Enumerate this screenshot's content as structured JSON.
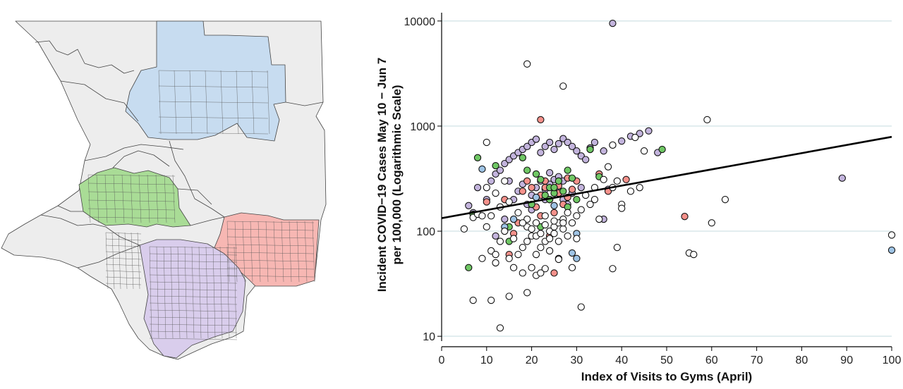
{
  "colors": {
    "north": "#c7dcf0",
    "west": "#a9dc96",
    "east": "#f7b7b3",
    "south": "#d9cdec",
    "other": "#ededed",
    "white": "#ffffff",
    "line": "#000000",
    "grid": "#d8e7ea"
  },
  "chart_data": {
    "type": "scatter",
    "xlabel": "Index of Visits to Gyms (April)",
    "ylabel": "Incident COVID−19 Cases May 10 − Jun 7 per 100,000 (Logarithmic Scale)",
    "ylabel_lines": [
      "Incident COVID−19 Cases May 10 − Jun 7",
      "per 100,000 (Logarithmic Scale)"
    ],
    "xlim": [
      0,
      100
    ],
    "ylim": [
      9,
      12000
    ],
    "yscale": "log",
    "x_ticks": [
      "0",
      "10",
      "20",
      "30",
      "40",
      "50",
      "60",
      "70",
      "80",
      "90",
      "100"
    ],
    "y_ticks": [
      "10",
      "100",
      "1000",
      "10000"
    ],
    "grid": "horizontal",
    "trend_line": {
      "x": [
        0,
        100
      ],
      "y": [
        133,
        790
      ]
    },
    "series": [
      {
        "color": "#c3b4dd",
        "points": [
          [
            38,
            9500
          ],
          [
            7,
            150
          ],
          [
            6,
            175
          ],
          [
            10,
            200
          ],
          [
            8,
            260
          ],
          [
            11,
            300
          ],
          [
            12,
            350
          ],
          [
            13,
            380
          ],
          [
            14,
            440
          ],
          [
            15,
            480
          ],
          [
            16,
            520
          ],
          [
            17,
            560
          ],
          [
            18,
            600
          ],
          [
            19,
            640
          ],
          [
            20,
            700
          ],
          [
            21,
            750
          ],
          [
            22,
            560
          ],
          [
            23,
            640
          ],
          [
            24,
            700
          ],
          [
            25,
            600
          ],
          [
            26,
            680
          ],
          [
            27,
            760
          ],
          [
            28,
            700
          ],
          [
            29,
            640
          ],
          [
            30,
            580
          ],
          [
            31,
            520
          ],
          [
            32,
            480
          ],
          [
            33,
            620
          ],
          [
            34,
            700
          ],
          [
            36,
            580
          ],
          [
            38,
            660
          ],
          [
            40,
            720
          ],
          [
            42,
            800
          ],
          [
            44,
            850
          ],
          [
            46,
            900
          ],
          [
            48,
            560
          ],
          [
            20,
            220
          ],
          [
            21,
            260
          ],
          [
            22,
            300
          ],
          [
            23,
            250
          ],
          [
            24,
            280
          ],
          [
            25,
            310
          ],
          [
            26,
            240
          ],
          [
            27,
            200
          ],
          [
            28,
            180
          ],
          [
            19,
            180
          ],
          [
            20,
            160
          ],
          [
            17,
            240
          ],
          [
            18,
            280
          ],
          [
            15,
            300
          ],
          [
            16,
            200
          ],
          [
            26,
            330
          ],
          [
            24,
            360
          ],
          [
            27,
            300
          ],
          [
            25,
            260
          ],
          [
            23,
            200
          ],
          [
            29,
            230
          ],
          [
            31,
            260
          ],
          [
            36,
            130
          ],
          [
            37,
            250
          ],
          [
            89,
            320
          ],
          [
            26,
            55
          ],
          [
            14,
            130
          ],
          [
            12,
            90
          ]
        ]
      },
      {
        "color": "#f5918b",
        "points": [
          [
            22,
            1150
          ],
          [
            10,
            190
          ],
          [
            14,
            200
          ],
          [
            16,
            95
          ],
          [
            18,
            240
          ],
          [
            20,
            260
          ],
          [
            22,
            140
          ],
          [
            23,
            300
          ],
          [
            24,
            200
          ],
          [
            25,
            150
          ],
          [
            26,
            230
          ],
          [
            27,
            180
          ],
          [
            28,
            210
          ],
          [
            29,
            250
          ],
          [
            30,
            300
          ],
          [
            33,
            600
          ],
          [
            35,
            350
          ],
          [
            37,
            240
          ],
          [
            41,
            310
          ],
          [
            54,
            138
          ],
          [
            25,
            40
          ],
          [
            24,
            90
          ],
          [
            15,
            60
          ],
          [
            19,
            300
          ],
          [
            21,
            170
          ],
          [
            23,
            260
          ],
          [
            26,
            270
          ],
          [
            28,
            320
          ],
          [
            22,
            220
          ],
          [
            17,
            120
          ]
        ]
      },
      {
        "color": "#6fc764",
        "points": [
          [
            6,
            45
          ],
          [
            7,
            145
          ],
          [
            8,
            500
          ],
          [
            12,
            420
          ],
          [
            15,
            80
          ],
          [
            18,
            500
          ],
          [
            19,
            380
          ],
          [
            21,
            350
          ],
          [
            22,
            310
          ],
          [
            23,
            220
          ],
          [
            24,
            260
          ],
          [
            25,
            230
          ],
          [
            26,
            300
          ],
          [
            28,
            380
          ],
          [
            29,
            320
          ],
          [
            33,
            600
          ],
          [
            35,
            330
          ],
          [
            49,
            600
          ],
          [
            20,
            180
          ],
          [
            27,
            240
          ],
          [
            30,
            200
          ],
          [
            28,
            170
          ],
          [
            15,
            110
          ],
          [
            22,
            110
          ],
          [
            25,
            260
          ],
          [
            24,
            200
          ]
        ]
      },
      {
        "color": "#9ec3e4",
        "points": [
          [
            100,
            66
          ],
          [
            30,
            95
          ],
          [
            29,
            62
          ],
          [
            30,
            55
          ],
          [
            14,
            110
          ],
          [
            16,
            130
          ],
          [
            9,
            390
          ],
          [
            21,
            210
          ],
          [
            25,
            175
          ]
        ]
      },
      {
        "color": "#ffffff",
        "points": [
          [
            19,
            3900
          ],
          [
            27,
            2400
          ],
          [
            59,
            1150
          ],
          [
            10,
            700
          ],
          [
            5,
            105
          ],
          [
            7,
            135
          ],
          [
            8,
            145
          ],
          [
            10,
            110
          ],
          [
            11,
            65
          ],
          [
            12,
            60
          ],
          [
            13,
            80
          ],
          [
            14,
            100
          ],
          [
            15,
            55
          ],
          [
            16,
            45
          ],
          [
            17,
            60
          ],
          [
            18,
            70
          ],
          [
            19,
            80
          ],
          [
            20,
            90
          ],
          [
            21,
            60
          ],
          [
            22,
            70
          ],
          [
            23,
            80
          ],
          [
            24,
            100
          ],
          [
            25,
            110
          ],
          [
            26,
            120
          ],
          [
            27,
            130
          ],
          [
            28,
            150
          ],
          [
            29,
            120
          ],
          [
            30,
            140
          ],
          [
            31,
            160
          ],
          [
            33,
            180
          ],
          [
            34,
            260
          ],
          [
            36,
            310
          ],
          [
            38,
            260
          ],
          [
            40,
            180
          ],
          [
            40,
            165
          ],
          [
            12,
            50
          ],
          [
            11,
            22
          ],
          [
            7,
            22
          ],
          [
            13,
            12
          ],
          [
            15,
            24
          ],
          [
            19,
            26
          ],
          [
            21,
            38
          ],
          [
            23,
            44
          ],
          [
            26,
            54
          ],
          [
            29,
            45
          ],
          [
            31,
            19
          ],
          [
            38,
            44
          ],
          [
            39,
            70
          ],
          [
            63,
            200
          ],
          [
            60,
            120
          ],
          [
            55,
            62
          ],
          [
            56,
            60
          ],
          [
            100,
            92
          ],
          [
            43,
            780
          ],
          [
            38,
            660
          ],
          [
            45,
            580
          ],
          [
            35,
            130
          ],
          [
            9,
            55
          ],
          [
            11,
            140
          ],
          [
            20,
            45
          ],
          [
            22,
            40
          ],
          [
            24,
            65
          ],
          [
            18,
            40
          ],
          [
            16,
            85
          ],
          [
            14,
            300
          ],
          [
            10,
            260
          ],
          [
            12,
            230
          ],
          [
            17,
            150
          ],
          [
            19,
            130
          ],
          [
            21,
            120
          ],
          [
            23,
            140
          ],
          [
            25,
            95
          ],
          [
            27,
            105
          ],
          [
            28,
            90
          ],
          [
            30,
            85
          ],
          [
            32,
            220
          ],
          [
            34,
            200
          ],
          [
            37,
            410
          ],
          [
            39,
            300
          ],
          [
            42,
            240
          ],
          [
            44,
            260
          ],
          [
            13,
            170
          ],
          [
            15,
            190
          ],
          [
            9,
            140
          ],
          [
            19,
            110
          ],
          [
            21,
            90
          ],
          [
            23,
            115
          ],
          [
            25,
            125
          ],
          [
            27,
            120
          ],
          [
            18,
            120
          ],
          [
            20,
            105
          ],
          [
            22,
            95
          ],
          [
            24,
            85
          ],
          [
            26,
            80
          ]
        ]
      }
    ]
  }
}
